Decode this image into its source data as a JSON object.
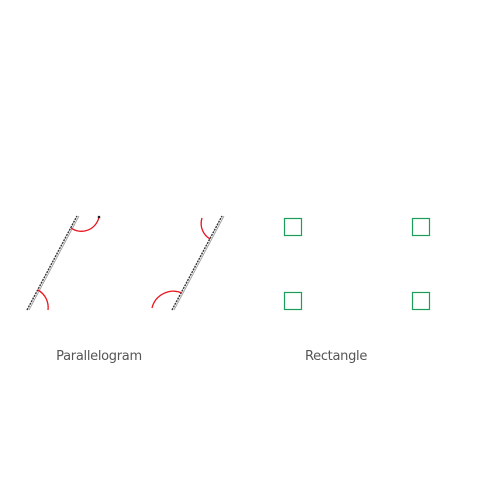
{
  "labels": {
    "parallelogram": "Parallelogram",
    "rectangle": "Rectangle"
  },
  "colors": {
    "line": "#333333",
    "angle_arc": "#e8141e",
    "right_angle_marker": "#1a9e5a",
    "label_text": "#555555"
  },
  "figures": {
    "parallelogram": {
      "angle_marks": 4,
      "mark_style": "arc"
    },
    "rectangle": {
      "angle_marks": 4,
      "mark_style": "square"
    }
  }
}
